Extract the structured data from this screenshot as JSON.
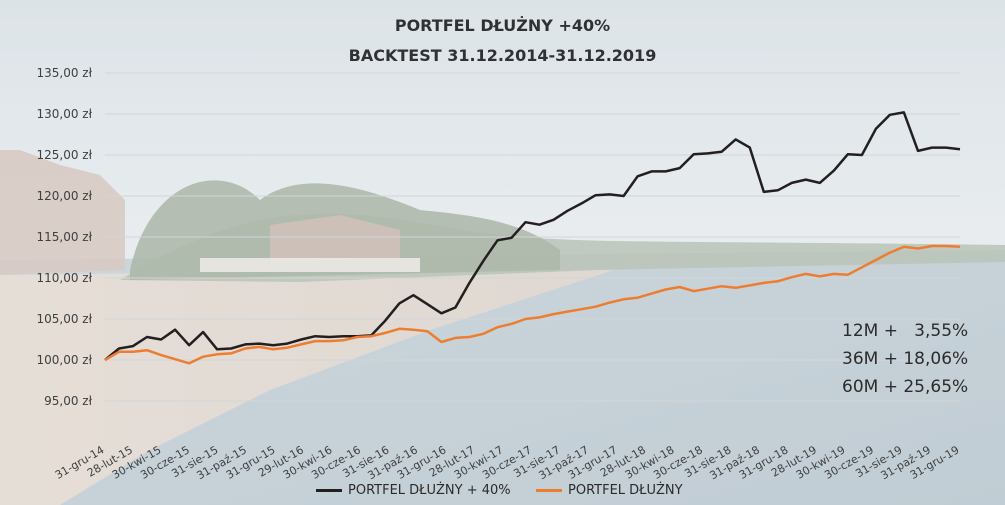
{
  "title": "PORTFEL DŁUŻNY +40%",
  "subtitle": "BACKTEST 31.12.2014-31.12.2019",
  "stats": [
    "12M +   3,55%",
    "36M + 18,06%",
    "60M + 25,65%"
  ],
  "colors": {
    "series0": "#231f20",
    "series1": "#ed7d31",
    "grid": "#d2d6d9",
    "axis_text": "#404040"
  },
  "chart_data": {
    "type": "line",
    "title": "PORTFEL DŁUŻNY +40%",
    "subtitle": "BACKTEST 31.12.2014-31.12.2019",
    "xlabel": "",
    "ylabel": "",
    "ylim": [
      90,
      135
    ],
    "yticks": [
      95,
      100,
      105,
      110,
      115,
      120,
      125,
      130,
      135
    ],
    "ytick_labels": [
      "95,00 zł",
      "100,00 zł",
      "105,00 zł",
      "110,00 zł",
      "115,00 zł",
      "120,00 zł",
      "125,00 zł",
      "130,00 zł",
      "135,00 zł"
    ],
    "x_labels": [
      "31-gru-14",
      "28-lut-15",
      "30-kwi-15",
      "30-cze-15",
      "31-sie-15",
      "31-paź-15",
      "31-gru-15",
      "29-lut-16",
      "30-kwi-16",
      "30-cze-16",
      "31-sie-16",
      "31-paź-16",
      "31-gru-16",
      "28-lut-17",
      "30-kwi-17",
      "30-cze-17",
      "31-sie-17",
      "31-paź-17",
      "31-gru-17",
      "28-lut-18",
      "30-kwi-18",
      "30-cze-18",
      "31-sie-18",
      "31-paź-18",
      "31-gru-18",
      "28-lut-19",
      "30-kwi-19",
      "30-cze-19",
      "31-sie-19",
      "31-paź-19",
      "31-gru-19"
    ],
    "grid": true,
    "legend_position": "bottom",
    "series": [
      {
        "name": "PORTFEL DŁUŻNY + 40%",
        "color": "#231f20",
        "values": [
          100.0,
          101.4,
          101.7,
          102.8,
          102.5,
          103.7,
          101.8,
          103.4,
          101.3,
          101.4,
          101.9,
          102.0,
          101.8,
          102.0,
          102.5,
          102.9,
          102.8,
          102.9,
          102.9,
          103.0,
          104.8,
          106.9,
          107.9,
          106.8,
          105.7,
          106.4,
          109.4,
          112.1,
          114.6,
          114.9,
          116.8,
          116.5,
          117.1,
          118.2,
          119.1,
          120.1,
          120.2,
          120.0,
          122.4,
          123.0,
          123.0,
          123.4,
          125.1,
          125.2,
          125.4,
          126.9,
          125.9,
          120.5,
          120.7,
          121.6,
          122.0,
          121.6,
          123.1,
          125.1,
          125.0,
          128.2,
          129.9,
          130.2,
          125.5,
          125.9,
          125.9,
          125.7
        ]
      },
      {
        "name": "PORTFEL DŁUŻNY",
        "color": "#ed7d31",
        "values": [
          100.0,
          101.0,
          101.0,
          101.2,
          100.6,
          100.1,
          99.6,
          100.4,
          100.7,
          100.8,
          101.4,
          101.6,
          101.3,
          101.5,
          101.9,
          102.3,
          102.3,
          102.4,
          102.8,
          102.9,
          103.3,
          103.8,
          103.7,
          103.5,
          102.2,
          102.7,
          102.8,
          103.2,
          104.0,
          104.4,
          105.0,
          105.2,
          105.6,
          105.9,
          106.2,
          106.5,
          107.0,
          107.4,
          107.6,
          108.1,
          108.6,
          108.9,
          108.4,
          108.7,
          109.0,
          108.8,
          109.1,
          109.4,
          109.6,
          110.1,
          110.5,
          110.2,
          110.5,
          110.4,
          111.3,
          112.2,
          113.1,
          113.8,
          113.6,
          113.9,
          113.9,
          113.8
        ]
      }
    ]
  }
}
